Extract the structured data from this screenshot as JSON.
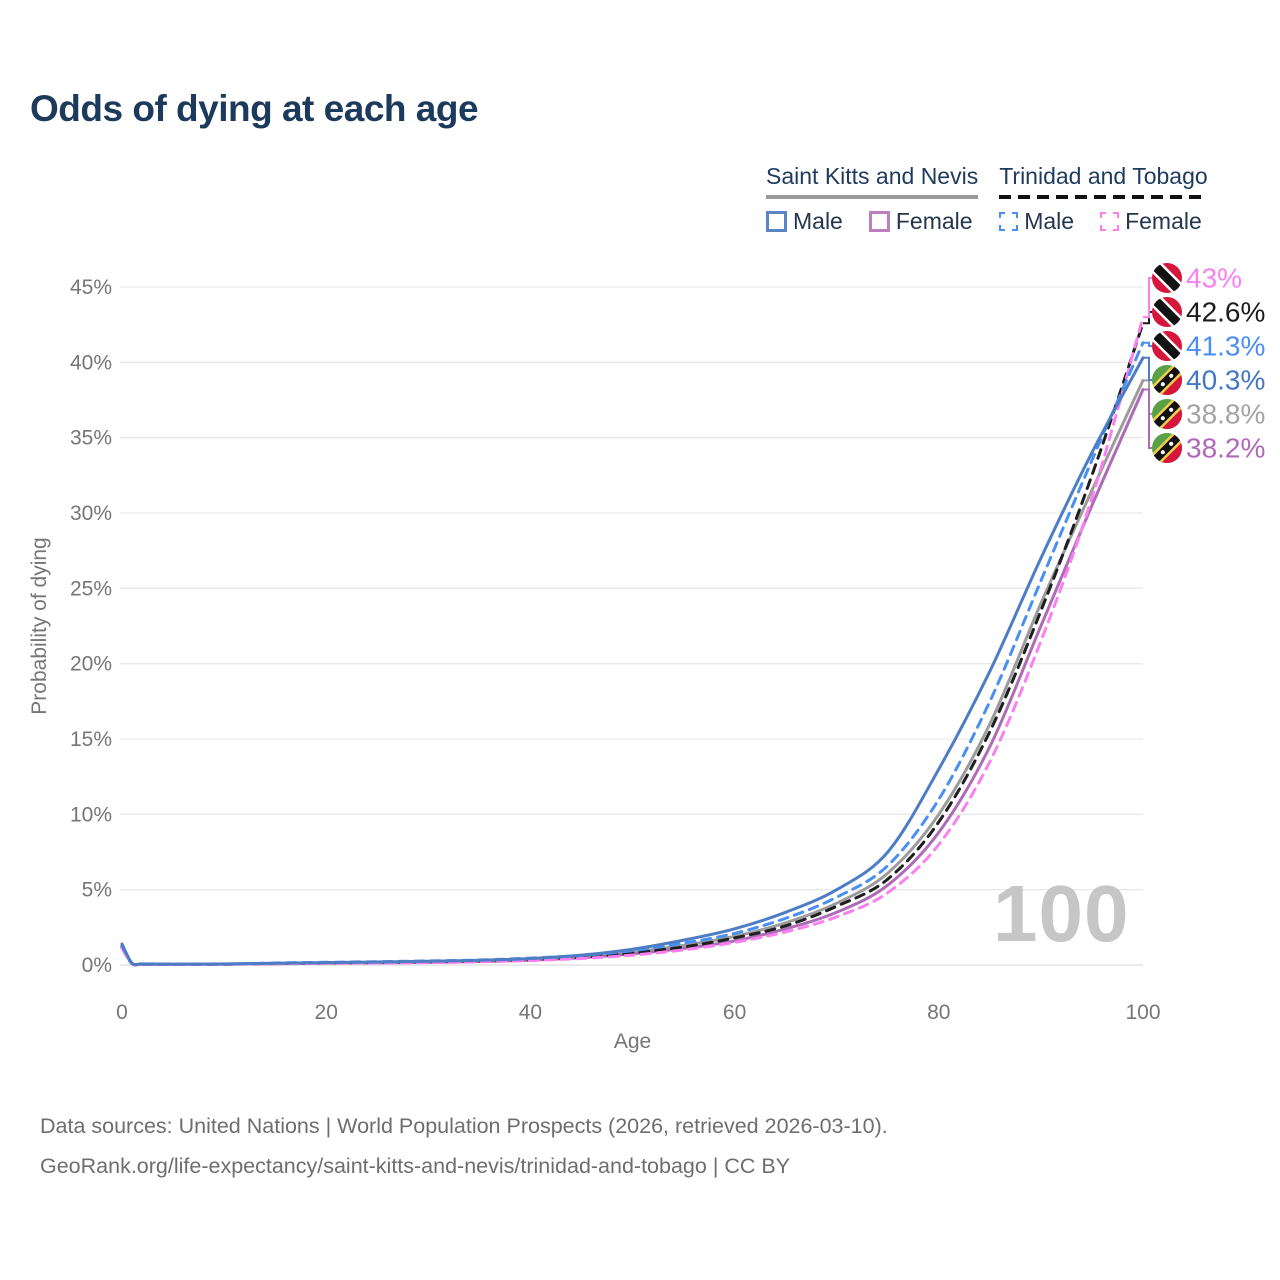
{
  "title": "Odds of dying at each age",
  "watermark": "100",
  "footer": {
    "line1": "Data sources: United Nations | World Population Prospects (2026, retrieved 2026-03-10).",
    "line2": "GeoRank.org/life-expectancy/saint-kitts-and-nevis/trinidad-and-tobago | CC BY"
  },
  "legend": {
    "groups": [
      {
        "name": "Saint Kitts and Nevis",
        "line_style": "solid",
        "rule_color": "#999999",
        "items": [
          {
            "label": "Male",
            "color": "#5b84c4",
            "dashed": false
          },
          {
            "label": "Female",
            "color": "#bd7ebe",
            "dashed": false
          }
        ]
      },
      {
        "name": "Trinidad and Tobago",
        "line_style": "dashed",
        "rule_color": "#111111",
        "items": [
          {
            "label": "Male",
            "color": "#4a90f2",
            "dashed": true
          },
          {
            "label": "Female",
            "color": "#fa80f0",
            "dashed": true
          }
        ]
      }
    ]
  },
  "chart_data": {
    "type": "line",
    "title": "Odds of dying at each age",
    "xlabel": "Age",
    "ylabel": "Probability of dying",
    "xlim": [
      0,
      100
    ],
    "ylim": [
      0,
      45
    ],
    "x_ticks": [
      0,
      20,
      40,
      60,
      80,
      100
    ],
    "y_ticks": [
      0,
      5,
      10,
      15,
      20,
      25,
      30,
      35,
      40,
      45
    ],
    "y_tick_suffix": "%",
    "grid": true,
    "legend_position": "top-right",
    "x": [
      0,
      1,
      2,
      5,
      10,
      15,
      20,
      25,
      30,
      35,
      40,
      45,
      50,
      55,
      60,
      65,
      70,
      75,
      80,
      85,
      90,
      95,
      100
    ],
    "series": [
      {
        "name": "Saint Kitts and Nevis — Total",
        "country": "Saint Kitts and Nevis",
        "sex": "total",
        "color": "#9c9c9c",
        "dashed": false,
        "flag": "kn",
        "end_label": "38.8%",
        "end_value": 38.8,
        "end_label_color": "#a4a4a4",
        "label_slot": 4,
        "values": [
          1.3,
          0.09,
          0.06,
          0.05,
          0.06,
          0.1,
          0.14,
          0.17,
          0.21,
          0.27,
          0.37,
          0.56,
          0.86,
          1.3,
          1.9,
          2.8,
          4.1,
          6.1,
          10.0,
          16.0,
          24.0,
          31.5,
          38.8
        ]
      },
      {
        "name": "Saint Kitts and Nevis — Female",
        "country": "Saint Kitts and Nevis",
        "sex": "female",
        "color": "#ad6cb5",
        "dashed": false,
        "flag": "kn",
        "end_label": "38.2%",
        "end_value": 38.2,
        "end_label_color": "#b168bb",
        "label_slot": 5,
        "values": [
          1.2,
          0.08,
          0.05,
          0.04,
          0.05,
          0.08,
          0.11,
          0.14,
          0.17,
          0.23,
          0.32,
          0.48,
          0.74,
          1.1,
          1.6,
          2.4,
          3.5,
          5.3,
          8.8,
          14.5,
          22.5,
          30.5,
          38.2
        ]
      },
      {
        "name": "Trinidad and Tobago — Total",
        "country": "Trinidad and Tobago",
        "sex": "total",
        "color": "#1f1f1f",
        "dashed": true,
        "flag": "tt",
        "end_label": "42.6%",
        "end_value": 42.6,
        "end_label_color": "#1c1c1c",
        "label_slot": 1,
        "values": [
          1.2,
          0.08,
          0.05,
          0.04,
          0.05,
          0.09,
          0.13,
          0.16,
          0.2,
          0.26,
          0.36,
          0.51,
          0.8,
          1.2,
          1.8,
          2.6,
          3.9,
          5.7,
          9.5,
          15.5,
          23.5,
          32.5,
          42.6
        ]
      },
      {
        "name": "Trinidad and Tobago — Female",
        "country": "Trinidad and Tobago",
        "sex": "female",
        "color": "#fa80f0",
        "dashed": true,
        "flag": "tt",
        "end_label": "43%",
        "end_value": 43.0,
        "end_label_color": "#fa80f0",
        "label_slot": 0,
        "values": [
          1.1,
          0.08,
          0.05,
          0.04,
          0.05,
          0.08,
          0.11,
          0.13,
          0.16,
          0.21,
          0.3,
          0.43,
          0.66,
          1.0,
          1.5,
          2.2,
          3.2,
          4.8,
          8.0,
          13.5,
          21.5,
          31.0,
          43.0
        ]
      },
      {
        "name": "Trinidad and Tobago — Male",
        "country": "Trinidad and Tobago",
        "sex": "male",
        "color": "#4a90f2",
        "dashed": true,
        "flag": "tt",
        "end_label": "41.3%",
        "end_value": 41.3,
        "end_label_color": "#4b8ef5",
        "label_slot": 2,
        "values": [
          1.3,
          0.09,
          0.06,
          0.05,
          0.06,
          0.13,
          0.18,
          0.22,
          0.27,
          0.33,
          0.46,
          0.63,
          0.95,
          1.45,
          2.1,
          3.1,
          4.5,
          6.6,
          11.0,
          17.5,
          25.5,
          33.5,
          41.3
        ]
      },
      {
        "name": "Saint Kitts and Nevis — Male",
        "country": "Saint Kitts and Nevis",
        "sex": "male",
        "color": "#4d7dc4",
        "dashed": false,
        "flag": "kn",
        "end_label": "40.3%",
        "end_value": 40.3,
        "end_label_color": "#4377c8",
        "label_slot": 3,
        "values": [
          1.4,
          0.1,
          0.07,
          0.06,
          0.07,
          0.11,
          0.16,
          0.2,
          0.25,
          0.31,
          0.43,
          0.66,
          1.05,
          1.65,
          2.4,
          3.5,
          5.0,
          7.5,
          13.0,
          19.5,
          27.0,
          34.0,
          40.3
        ]
      }
    ]
  },
  "colors": {
    "title_text": "#1c3a5c",
    "axis_text": "#767676",
    "gridline": "#e9e9e9",
    "zero_gridline": "#dedede",
    "watermark": "#c6c6c6",
    "footer_text": "#6e6e6e"
  }
}
